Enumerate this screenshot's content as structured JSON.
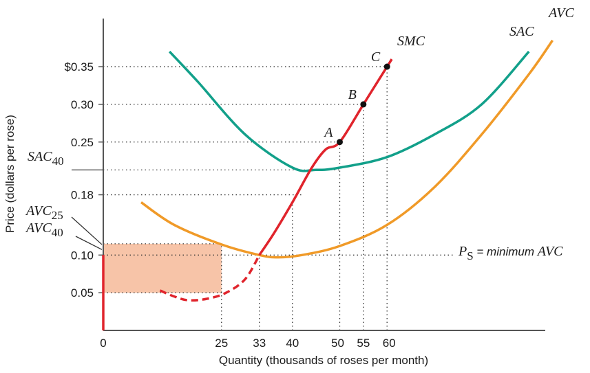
{
  "chart_data": {
    "type": "line",
    "title": "",
    "xlabel": "Quantity (thousands of roses per month)",
    "ylabel": "Price (dollars per rose)",
    "x_ticks": [
      {
        "value": 0,
        "label": "0"
      },
      {
        "value": 25,
        "label": "25"
      },
      {
        "value": 33,
        "label": "33"
      },
      {
        "value": 40,
        "label": "40"
      },
      {
        "value": 50,
        "label": "50"
      },
      {
        "value": 55,
        "label": "55"
      },
      {
        "value": 60,
        "label": "60"
      }
    ],
    "y_ticks": [
      {
        "value": 0.05,
        "label": "0.05"
      },
      {
        "value": 0.1,
        "label": "0.10"
      },
      {
        "value": 0.18,
        "label": "0.18"
      },
      {
        "value": 0.25,
        "label": "0.25"
      },
      {
        "value": 0.3,
        "label": "0.30"
      },
      {
        "value": 0.35,
        "label": "$0.35"
      }
    ],
    "series": [
      {
        "name": "SAC",
        "color": "#12a08a",
        "points": [
          [
            14,
            0.37
          ],
          [
            20,
            0.33
          ],
          [
            30,
            0.26
          ],
          [
            40,
            0.216
          ],
          [
            45,
            0.213
          ],
          [
            50,
            0.216
          ],
          [
            60,
            0.23
          ],
          [
            70,
            0.26
          ],
          [
            80,
            0.3
          ],
          [
            90,
            0.37
          ]
        ]
      },
      {
        "name": "AVC",
        "color": "#f09a28",
        "points": [
          [
            8,
            0.17
          ],
          [
            15,
            0.14
          ],
          [
            25,
            0.114
          ],
          [
            33,
            0.1
          ],
          [
            37,
            0.097
          ],
          [
            42,
            0.1
          ],
          [
            50,
            0.112
          ],
          [
            60,
            0.14
          ],
          [
            70,
            0.19
          ],
          [
            80,
            0.26
          ],
          [
            90,
            0.34
          ],
          [
            95,
            0.385
          ]
        ]
      },
      {
        "name": "SMC",
        "color": "#e0242c",
        "dashed_until_x": 33,
        "points": [
          [
            12,
            0.053
          ],
          [
            15,
            0.045
          ],
          [
            18,
            0.04
          ],
          [
            22,
            0.042
          ],
          [
            26,
            0.05
          ],
          [
            30,
            0.068
          ],
          [
            33,
            0.1
          ],
          [
            36,
            0.128
          ],
          [
            40,
            0.17
          ],
          [
            44,
            0.215
          ],
          [
            47,
            0.24
          ],
          [
            50,
            0.25
          ],
          [
            55,
            0.3
          ],
          [
            60,
            0.35
          ],
          [
            61,
            0.36
          ]
        ]
      }
    ],
    "points": [
      {
        "label": "A",
        "x": 50,
        "y": 0.25
      },
      {
        "label": "B",
        "x": 55,
        "y": 0.3
      },
      {
        "label": "C",
        "x": 60,
        "y": 0.35
      }
    ],
    "shaded_region": {
      "x0": 0,
      "x1": 25,
      "y0": 0.05,
      "y1": 0.115,
      "color": "#f7c4a8"
    },
    "supply_segment": {
      "x": 0,
      "y0": 0,
      "y1": 0.1,
      "color": "#e0242c"
    },
    "side_labels": {
      "sac40": {
        "base": "SAC",
        "sub": "40",
        "y": 0.213
      },
      "avc25": {
        "base": "AVC",
        "sub": "25",
        "y": 0.114
      },
      "avc40": {
        "base": "AVC",
        "sub": "40",
        "y": 0.1
      }
    },
    "ps_label": {
      "base": "P",
      "sub": "S",
      "rest": " = minimum ",
      "avc": "AVC"
    },
    "curve_labels": {
      "smc": "SMC",
      "sac": "SAC",
      "avc": "AVC"
    },
    "xlim": [
      0,
      100
    ],
    "ylim": [
      0,
      0.4
    ]
  }
}
